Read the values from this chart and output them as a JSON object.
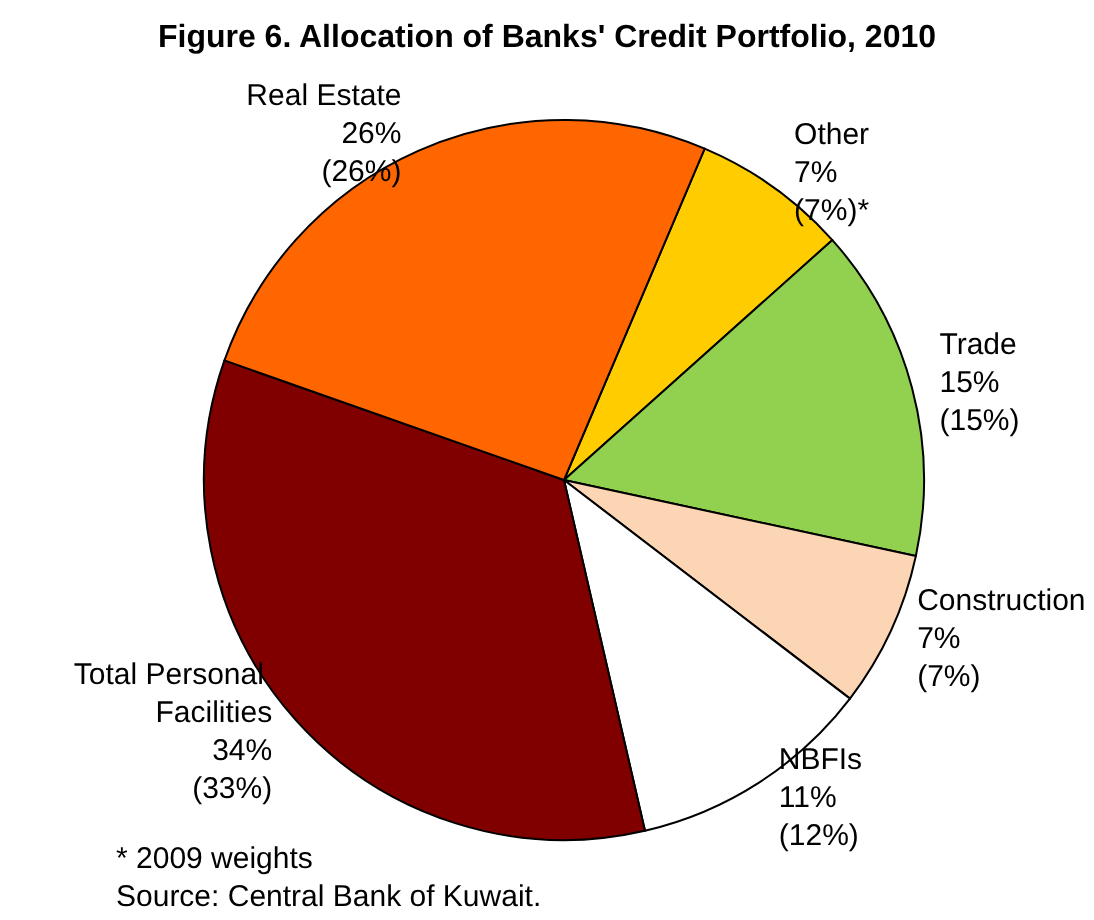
{
  "chart_data": {
    "type": "pie",
    "title": "Figure 6. Allocation of Banks' Credit Portfolio, 2010",
    "categories": [
      "Other",
      "Trade",
      "Construction",
      "NBFIs",
      "Total Personal Facilities",
      "Real Estate"
    ],
    "values": [
      7,
      15,
      7,
      11,
      34,
      26
    ],
    "colors": [
      "#ffcc00",
      "#92d050",
      "#fcd5b4",
      "#ffffff",
      "#800000",
      "#ff6600"
    ],
    "value_labels": [
      "7%\n(7%)*",
      "15%\n(15%)",
      "7%\n(7%)",
      "11%\n(12%)",
      "34%\n(33%)",
      "26%\n(26%)"
    ],
    "annotations": [
      "* 2009 weights",
      "Source: Central Bank of Kuwait."
    ],
    "legend": false
  }
}
